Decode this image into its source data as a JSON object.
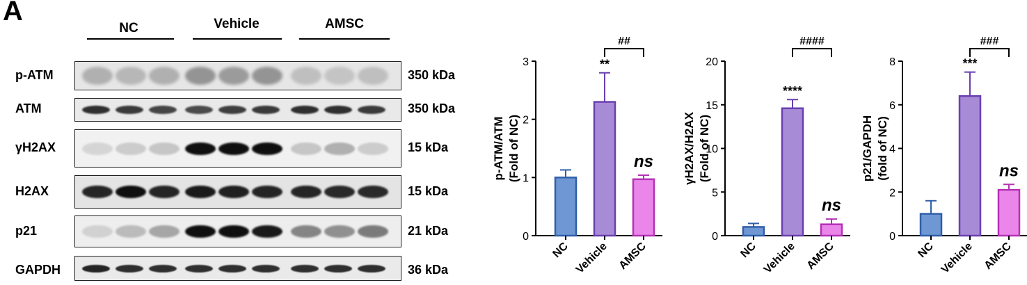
{
  "panel": {
    "letter": "A"
  },
  "western_blot": {
    "groups": [
      "NC",
      "Vehicle",
      "AMSC"
    ],
    "rows": [
      {
        "label": "p-ATM",
        "size": "350 kDa"
      },
      {
        "label": "ATM",
        "size": "350 kDa"
      },
      {
        "label": "γH2AX",
        "size": "15 kDa"
      },
      {
        "label": "H2AX",
        "size": "15 kDa"
      },
      {
        "label": "p21",
        "size": "21 kDa"
      },
      {
        "label": "GAPDH",
        "size": "36 kDa"
      }
    ]
  },
  "colors": {
    "NC": "#6f97d3",
    "Vehicle": "#a78bd6",
    "AMSC": "#ea86ea",
    "NC_edge": "#2f5fa8",
    "Vehicle_edge": "#6a3fb0",
    "AMSC_edge": "#b531b5"
  },
  "chart_data": [
    {
      "type": "bar",
      "categories": [
        "NC",
        "Vehicle",
        "AMSC"
      ],
      "values": [
        1.0,
        2.3,
        0.97
      ],
      "errors": [
        0.13,
        0.5,
        0.07
      ],
      "ylabel": [
        "p-ATM/ATM",
        "(Fold of NC)"
      ],
      "ylim": [
        0,
        3
      ],
      "yticks": [
        "0",
        "1",
        "2",
        "3"
      ],
      "stars": "**",
      "bracket": "##",
      "ns": "ns"
    },
    {
      "type": "bar",
      "categories": [
        "NC",
        "Vehicle",
        "AMSC"
      ],
      "values": [
        1.0,
        14.6,
        1.3
      ],
      "errors": [
        0.4,
        1.0,
        0.6
      ],
      "ylabel": [
        "γH2AX/H2AX",
        "(Fold of NC)"
      ],
      "ylim": [
        0,
        20
      ],
      "yticks": [
        "0",
        "5",
        "10",
        "15",
        "20"
      ],
      "stars": "****",
      "bracket": "####",
      "ns": "ns"
    },
    {
      "type": "bar",
      "categories": [
        "NC",
        "Vehicle",
        "AMSC"
      ],
      "values": [
        1.0,
        6.4,
        2.1
      ],
      "errors": [
        0.6,
        1.1,
        0.25
      ],
      "ylabel": [
        "p21/GAPDH",
        "(fold of NC)"
      ],
      "ylim": [
        0,
        8
      ],
      "yticks": [
        "0",
        "2",
        "4",
        "6",
        "8"
      ],
      "stars": "***",
      "bracket": "###",
      "ns": "ns"
    }
  ]
}
